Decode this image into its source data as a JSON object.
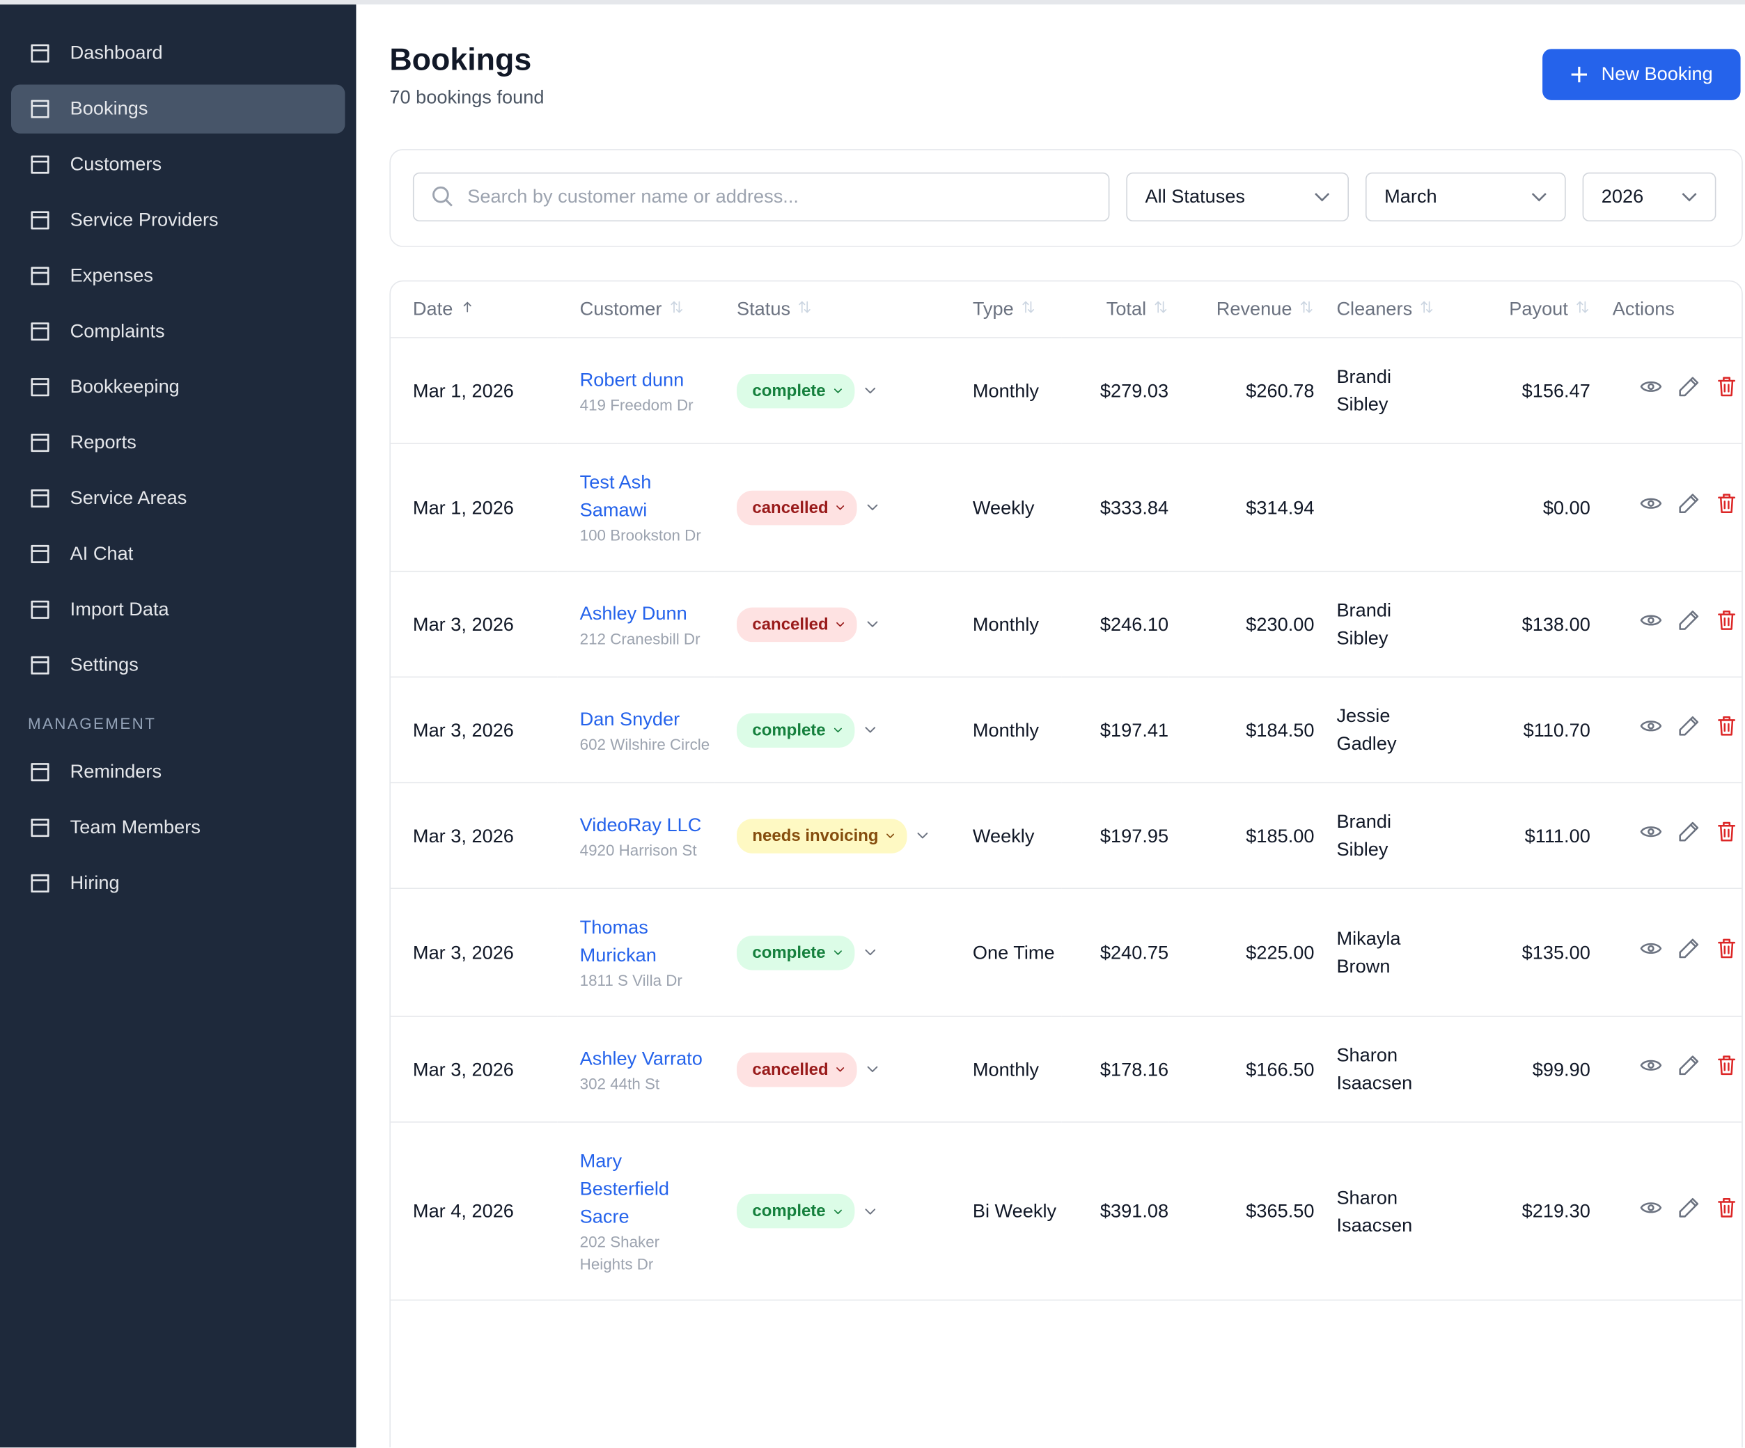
{
  "sidebar": {
    "nav": [
      "Dashboard",
      "Bookings",
      "Customers",
      "Service Providers",
      "Expenses",
      "Complaints",
      "Bookkeeping",
      "Reports",
      "Service Areas",
      "AI Chat",
      "Import Data",
      "Settings"
    ],
    "section_label": "MANAGEMENT",
    "management": [
      "Reminders",
      "Team Members",
      "Hiring"
    ]
  },
  "header": {
    "title": "Bookings",
    "subtitle": "70 bookings found",
    "button": "New Booking"
  },
  "filters": {
    "search_placeholder": "Search by customer name or address...",
    "status": "All Statuses",
    "month": "March",
    "year": "2026"
  },
  "table": {
    "columns": [
      "Date",
      "Customer",
      "Status",
      "Type",
      "Total",
      "Revenue",
      "Cleaners",
      "Payout",
      "Actions"
    ],
    "rows": [
      {
        "date": "Mar 1, 2026",
        "customer": "Robert dunn",
        "address": "419 Freedom Dr",
        "status": "complete",
        "status_color": "#15803d",
        "status_bg": "#dcfce7",
        "type": "Monthly",
        "total": "$279.03",
        "revenue": "$260.78",
        "cleaners": "Brandi Sibley",
        "payout": "$156.47"
      },
      {
        "date": "Mar 1, 2026",
        "customer": "Test Ash Samawi",
        "address": "100 Brookston Dr",
        "status": "cancelled",
        "status_color": "#991b1b",
        "status_bg": "#fee2e2",
        "type": "Weekly",
        "total": "$333.84",
        "revenue": "$314.94",
        "cleaners": null,
        "payout": "$0.00"
      },
      {
        "date": "Mar 3, 2026",
        "customer": "Ashley Dunn",
        "address": "212 Cranesbill Dr",
        "status": "cancelled",
        "status_color": "#991b1b",
        "status_bg": "#fee2e2",
        "type": "Monthly",
        "total": "$246.10",
        "revenue": "$230.00",
        "cleaners": "Brandi Sibley",
        "payout": "$138.00"
      },
      {
        "date": "Mar 3, 2026",
        "customer": "Dan Snyder",
        "address": "602 Wilshire Circle",
        "status": "complete",
        "status_color": "#15803d",
        "status_bg": "#dcfce7",
        "type": "Monthly",
        "total": "$197.41",
        "revenue": "$184.50",
        "cleaners": "Jessie Gadley",
        "payout": "$110.70"
      },
      {
        "date": "Mar 3, 2026",
        "customer": "VideoRay LLC",
        "address": "4920 Harrison St",
        "status": "needs invoicing",
        "status_color": "#854d0e",
        "status_bg": "#fef9c3",
        "type": "Weekly",
        "total": "$197.95",
        "revenue": "$185.00",
        "cleaners": "Brandi Sibley",
        "payout": "$111.00"
      },
      {
        "date": "Mar 3, 2026",
        "customer": "Thomas Murickan",
        "address": "1811 S Villa Dr",
        "status": "complete",
        "status_color": "#15803d",
        "status_bg": "#dcfce7",
        "type": "One Time",
        "total": "$240.75",
        "revenue": "$225.00",
        "cleaners": "Mikayla Brown",
        "payout": "$135.00"
      },
      {
        "date": "Mar 3, 2026",
        "customer": "Ashley Varrato",
        "address": "302 44th St",
        "status": "cancelled",
        "status_color": "#991b1b",
        "status_bg": "#fee2e2",
        "type": "Monthly",
        "total": "$178.16",
        "revenue": "$166.50",
        "cleaners": "Sharon Isaacsen",
        "payout": "$99.90"
      },
      {
        "date": "Mar 4, 2026",
        "customer": "Mary Besterfield Sacre",
        "address": "202 Shaker Heights Dr",
        "status": "complete",
        "status_color": "#15803d",
        "status_bg": "#dcfce7",
        "type": "Bi Weekly",
        "total": "$391.08",
        "revenue": "$365.50",
        "cleaners": "Sharon Isaacsen",
        "payout": "$219.30"
      }
    ]
  }
}
